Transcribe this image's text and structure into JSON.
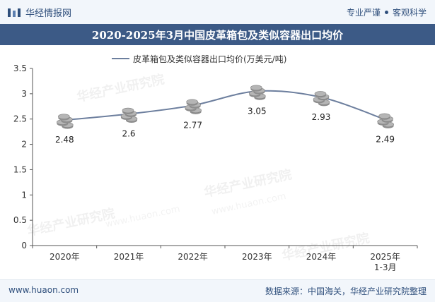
{
  "header": {
    "brand": "华经情报网",
    "tag1": "专业严谨",
    "tag2": "客观科学",
    "title": "2020-2025年3月中国皮革箱包及类似容器出口均价"
  },
  "footer": {
    "website": "www.huaon.com",
    "source": "数据来源：中国海关，华经产业研究院整理"
  },
  "watermark": {
    "text": "华经产业研究院",
    "url": "www.huaon.com"
  },
  "colors": {
    "line": "#6d7f9e",
    "accent": "#3c5a86",
    "coin": "#b5b5b5"
  },
  "chart_data": {
    "type": "line",
    "title": "2020-2025年3月中国皮革箱包及类似容器出口均价",
    "legend": "皮革箱包及类似容器出口均价(万美元/吨)",
    "categories": [
      "2020年",
      "2021年",
      "2022年",
      "2023年",
      "2024年",
      "2025年\n1-3月"
    ],
    "values": [
      2.48,
      2.6,
      2.77,
      3.05,
      2.93,
      2.49
    ],
    "value_labels": [
      "2.48",
      "2.6",
      "2.77",
      "3.05",
      "2.93",
      "2.49"
    ],
    "ylim": [
      0,
      3.5
    ],
    "yticks": [
      "0",
      "0.5",
      "1",
      "1.5",
      "2",
      "2.5",
      "3",
      "3.5"
    ],
    "xlabel": "",
    "ylabel": "",
    "grid": false
  }
}
